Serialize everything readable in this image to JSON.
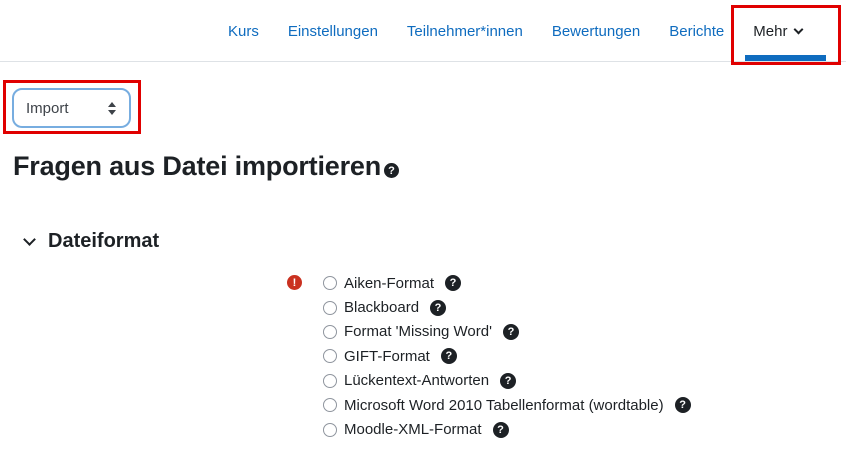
{
  "navbar": {
    "items": [
      {
        "label": "Kurs"
      },
      {
        "label": "Einstellungen"
      },
      {
        "label": "Teilnehmer*innen"
      },
      {
        "label": "Bewertungen"
      },
      {
        "label": "Berichte"
      },
      {
        "label": "Mehr"
      }
    ],
    "active_item": "Mehr"
  },
  "import_select": {
    "value": "Import"
  },
  "page": {
    "title": "Fragen aus Datei importieren"
  },
  "section": {
    "title": "Dateiformat",
    "state": "expanded"
  },
  "file_formats": {
    "required": true,
    "options": [
      {
        "label": "Aiken-Format"
      },
      {
        "label": "Blackboard"
      },
      {
        "label": "Format 'Missing Word'"
      },
      {
        "label": "GIFT-Format"
      },
      {
        "label": "Lückentext-Antworten"
      },
      {
        "label": "Microsoft Word 2010 Tabellenformat (wordtable)"
      },
      {
        "label": "Moodle-XML-Format"
      }
    ]
  },
  "icons": {
    "help_glyph": "?",
    "required_glyph": "!"
  },
  "colors": {
    "link_blue": "#0f6cbf",
    "active_tab_underline": "#0f6cbf",
    "annotation_red": "#e00000",
    "required_red": "#ca3120",
    "text_dark": "#1d2125",
    "select_focus_border": "#77ade0",
    "nav_border": "#dee2e6"
  }
}
